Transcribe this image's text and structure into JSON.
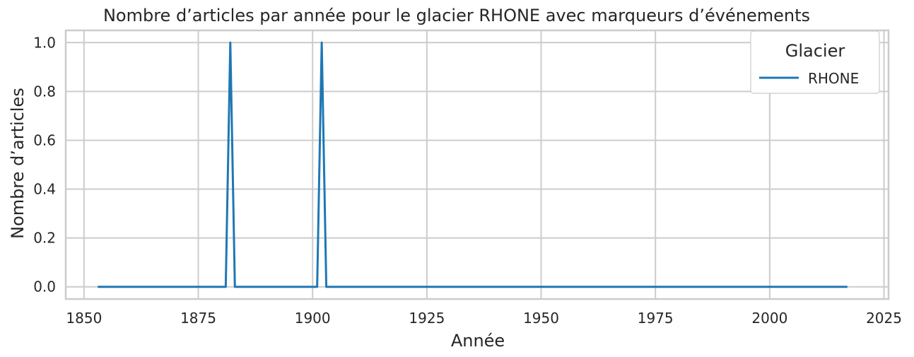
{
  "chart_data": {
    "type": "line",
    "title": "Nombre d’articles par année pour le glacier RHONE avec marqueurs d’événements",
    "xlabel": "Année",
    "ylabel": "Nombre d’articles",
    "xlim": [
      1846,
      2026
    ],
    "ylim": [
      -0.05,
      1.05
    ],
    "x_ticks": [
      1850,
      1875,
      1900,
      1925,
      1950,
      1975,
      2000,
      2025
    ],
    "x_tick_labels": [
      "1850",
      "1875",
      "1900",
      "1925",
      "1950",
      "1975",
      "2000",
      "2025"
    ],
    "y_ticks": [
      0.0,
      0.2,
      0.4,
      0.6,
      0.8,
      1.0
    ],
    "y_tick_labels": [
      "0.0",
      "0.2",
      "0.4",
      "0.6",
      "0.8",
      "1.0"
    ],
    "grid": true,
    "legend": {
      "title": "Glacier",
      "position": "top-right"
    },
    "series": [
      {
        "name": "RHONE",
        "color": "#1f77b4",
        "points": [
          [
            1853,
            0
          ],
          [
            1881,
            0
          ],
          [
            1882,
            1
          ],
          [
            1883,
            0
          ],
          [
            1901,
            0
          ],
          [
            1902,
            1
          ],
          [
            1903,
            0
          ],
          [
            2017,
            0
          ]
        ]
      }
    ]
  }
}
